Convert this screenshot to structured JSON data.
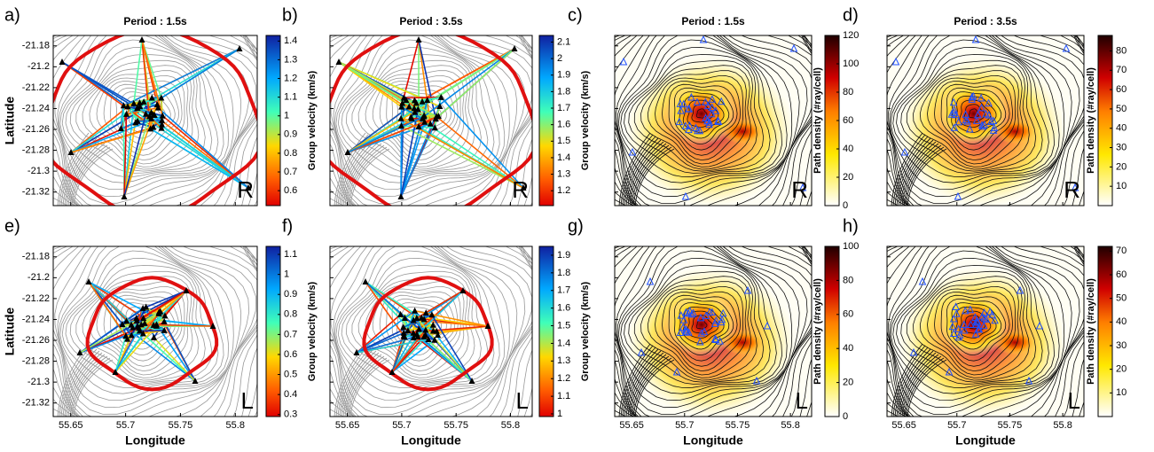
{
  "chart_data": [
    {
      "type": "map",
      "label": "a)",
      "title": "Period : 1.5s",
      "map_style": "rays",
      "corner_label": "R",
      "xlim": [
        55.634,
        55.82
      ],
      "ylim": [
        -21.333,
        -21.17
      ],
      "xticks": [
        55.65,
        55.7,
        55.75,
        55.8
      ],
      "yticks": [
        -21.18,
        -21.2,
        -21.22,
        -21.24,
        -21.26,
        -21.28,
        -21.3,
        -21.32
      ],
      "xtick_labels": false,
      "ytick_labels": true,
      "ylabel": "Latitude",
      "colorbar": {
        "label": "Group velocity (km/s)",
        "colormap": "jet_r",
        "clim": [
          0.52,
          1.43
        ],
        "ticks": [
          0.6,
          0.7,
          0.8,
          0.9,
          1,
          1.1,
          1.2,
          1.3,
          1.4
        ]
      }
    },
    {
      "type": "map",
      "label": "b)",
      "title": "Period : 3.5s",
      "map_style": "rays",
      "corner_label": "R",
      "xlim": [
        55.634,
        55.82
      ],
      "ylim": [
        -21.333,
        -21.17
      ],
      "xticks": [
        55.65,
        55.7,
        55.75,
        55.8
      ],
      "yticks": [
        -21.18,
        -21.2,
        -21.22,
        -21.24,
        -21.26,
        -21.28,
        -21.3,
        -21.32
      ],
      "xtick_labels": false,
      "ytick_labels": false,
      "colorbar": {
        "label": "Group velocity (km/s)",
        "colormap": "jet_r",
        "clim": [
          1.11,
          2.14
        ],
        "ticks": [
          1.2,
          1.3,
          1.4,
          1.5,
          1.6,
          1.7,
          1.8,
          1.9,
          2,
          2.1
        ]
      }
    },
    {
      "type": "map",
      "label": "c)",
      "title": "Period : 1.5s",
      "map_style": "density",
      "corner_label": "R",
      "xlim": [
        55.634,
        55.82
      ],
      "ylim": [
        -21.333,
        -21.17
      ],
      "xticks": [
        55.65,
        55.7,
        55.75,
        55.8
      ],
      "yticks": [
        -21.18,
        -21.2,
        -21.22,
        -21.24,
        -21.26,
        -21.28,
        -21.3,
        -21.32
      ],
      "xtick_labels": false,
      "ytick_labels": false,
      "colorbar": {
        "label": "Path density (#ray/cell)",
        "colormap": "hot_r",
        "clim": [
          0,
          120
        ],
        "ticks": [
          0,
          20,
          40,
          60,
          80,
          100,
          120
        ]
      }
    },
    {
      "type": "map",
      "label": "d)",
      "title": "Period : 3.5s",
      "map_style": "density",
      "corner_label": "R",
      "xlim": [
        55.634,
        55.82
      ],
      "ylim": [
        -21.333,
        -21.17
      ],
      "xticks": [
        55.65,
        55.7,
        55.75,
        55.8
      ],
      "yticks": [
        -21.18,
        -21.2,
        -21.22,
        -21.24,
        -21.26,
        -21.28,
        -21.3,
        -21.32
      ],
      "xtick_labels": false,
      "ytick_labels": false,
      "colorbar": {
        "label": "Path density (#ray/cell)",
        "colormap": "hot_r",
        "clim": [
          0,
          88
        ],
        "ticks": [
          10,
          20,
          30,
          40,
          50,
          60,
          70,
          80
        ]
      }
    },
    {
      "type": "map",
      "label": "e)",
      "map_style": "rays",
      "corner_label": "L",
      "xlim": [
        55.634,
        55.82
      ],
      "ylim": [
        -21.333,
        -21.17
      ],
      "xticks": [
        55.65,
        55.7,
        55.75,
        55.8
      ],
      "yticks": [
        -21.18,
        -21.2,
        -21.22,
        -21.24,
        -21.26,
        -21.28,
        -21.3,
        -21.32
      ],
      "xtick_labels": true,
      "ytick_labels": true,
      "xlabel": "Longitude",
      "ylabel": "Latitude",
      "colorbar": {
        "label": "Group velocity (km/s)",
        "colormap": "jet_r",
        "clim": [
          0.29,
          1.14
        ],
        "ticks": [
          0.3,
          0.4,
          0.5,
          0.6,
          0.7,
          0.8,
          0.9,
          1,
          1.1
        ]
      }
    },
    {
      "type": "map",
      "label": "f)",
      "map_style": "rays",
      "corner_label": "L",
      "xlim": [
        55.634,
        55.82
      ],
      "ylim": [
        -21.333,
        -21.17
      ],
      "xticks": [
        55.65,
        55.7,
        55.75,
        55.8
      ],
      "yticks": [
        -21.18,
        -21.2,
        -21.22,
        -21.24,
        -21.26,
        -21.28,
        -21.3,
        -21.32
      ],
      "xtick_labels": true,
      "ytick_labels": false,
      "xlabel": "Longitude",
      "colorbar": {
        "label": "Group velocity (km/s)",
        "colormap": "jet_r",
        "clim": [
          0.985,
          1.95
        ],
        "ticks": [
          1,
          1.1,
          1.2,
          1.3,
          1.4,
          1.5,
          1.6,
          1.7,
          1.8,
          1.9
        ]
      }
    },
    {
      "type": "map",
      "label": "g)",
      "map_style": "density",
      "corner_label": "L",
      "xlim": [
        55.634,
        55.82
      ],
      "ylim": [
        -21.333,
        -21.17
      ],
      "xticks": [
        55.65,
        55.7,
        55.75,
        55.8
      ],
      "yticks": [
        -21.18,
        -21.2,
        -21.22,
        -21.24,
        -21.26,
        -21.28,
        -21.3,
        -21.32
      ],
      "xtick_labels": true,
      "ytick_labels": false,
      "xlabel": "Longitude",
      "colorbar": {
        "label": "Path density (#ray/cell)",
        "colormap": "hot_r",
        "clim": [
          0,
          100
        ],
        "ticks": [
          0,
          20,
          40,
          60,
          80,
          100
        ]
      }
    },
    {
      "type": "map",
      "label": "h)",
      "map_style": "density",
      "corner_label": "L",
      "xlim": [
        55.634,
        55.82
      ],
      "ylim": [
        -21.333,
        -21.17
      ],
      "xticks": [
        55.65,
        55.7,
        55.75,
        55.8
      ],
      "yticks": [
        -21.18,
        -21.2,
        -21.22,
        -21.24,
        -21.26,
        -21.28,
        -21.3,
        -21.32
      ],
      "xtick_labels": true,
      "ytick_labels": false,
      "xlabel": "Longitude",
      "colorbar": {
        "label": "Path density (#ray/cell)",
        "colormap": "hot_r",
        "clim": [
          0,
          72
        ],
        "ticks": [
          10,
          20,
          30,
          40,
          50,
          60,
          70
        ]
      }
    }
  ]
}
